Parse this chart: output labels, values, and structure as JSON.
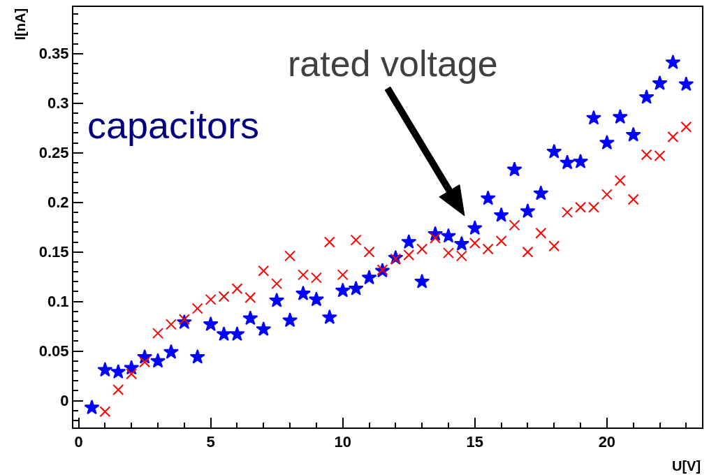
{
  "chart_data": {
    "type": "scatter",
    "xlabel": "U[V]",
    "ylabel": "I[nA]",
    "xlim": [
      -0.2,
      23.6
    ],
    "ylim": [
      -0.027,
      0.397
    ],
    "xticks": [
      0,
      5,
      10,
      15,
      20
    ],
    "yticks": [
      0,
      0.05,
      0.1,
      0.15,
      0.2,
      0.25,
      0.3,
      0.35
    ],
    "annotations": [
      "capacitors",
      "rated voltage"
    ],
    "series": [
      {
        "color": "#0000ff",
        "marker": "star",
        "x": [
          0.5,
          1,
          1.5,
          2,
          2.5,
          3,
          3.5,
          4,
          4.5,
          5,
          5.5,
          6,
          6.5,
          7,
          7.5,
          8,
          8.5,
          9,
          9.5,
          10,
          10.5,
          11,
          11.5,
          12,
          12.5,
          13,
          13.5,
          14,
          14.5,
          15,
          15.5,
          16,
          16.5,
          17,
          17.5,
          18,
          18.5,
          19,
          19.5,
          20,
          20.5,
          21,
          21.5,
          22,
          22.5,
          23
        ],
        "values": [
          -0.007,
          0.031,
          0.029,
          0.033,
          0.044,
          0.04,
          0.049,
          0.079,
          0.044,
          0.077,
          0.067,
          0.067,
          0.083,
          0.072,
          0.101,
          0.081,
          0.108,
          0.102,
          0.084,
          0.111,
          0.113,
          0.124,
          0.131,
          0.144,
          0.16,
          0.12,
          0.168,
          0.166,
          0.158,
          0.174,
          0.204,
          0.187,
          0.233,
          0.191,
          0.209,
          0.251,
          0.24,
          0.241,
          0.285,
          0.26,
          0.286,
          0.268,
          0.306,
          0.32,
          0.341,
          0.319
        ]
      },
      {
        "color": "#ff0000",
        "marker": "cross",
        "x": [
          1,
          1.5,
          2,
          2.5,
          3,
          3.5,
          4,
          4.5,
          5,
          5.5,
          6,
          6.5,
          7,
          7.5,
          8,
          8.5,
          9,
          9.5,
          10,
          10.5,
          11,
          11.5,
          12,
          12.5,
          13,
          13.5,
          14,
          14.5,
          15,
          15.5,
          16,
          16.5,
          17,
          17.5,
          18,
          18.5,
          19,
          19.5,
          20,
          20.5,
          21,
          21.5,
          22,
          22.5,
          23
        ],
        "values": [
          -0.011,
          0.011,
          0.027,
          0.039,
          0.068,
          0.077,
          0.082,
          0.093,
          0.102,
          0.105,
          0.113,
          0.104,
          0.131,
          0.118,
          0.146,
          0.127,
          0.124,
          0.16,
          0.127,
          0.162,
          0.15,
          0.132,
          0.143,
          0.147,
          0.153,
          0.164,
          0.149,
          0.146,
          0.159,
          0.153,
          0.161,
          0.177,
          0.15,
          0.169,
          0.156,
          0.19,
          0.195,
          0.195,
          0.208,
          0.222,
          0.203,
          0.248,
          0.247,
          0.266,
          0.276
        ]
      }
    ]
  }
}
